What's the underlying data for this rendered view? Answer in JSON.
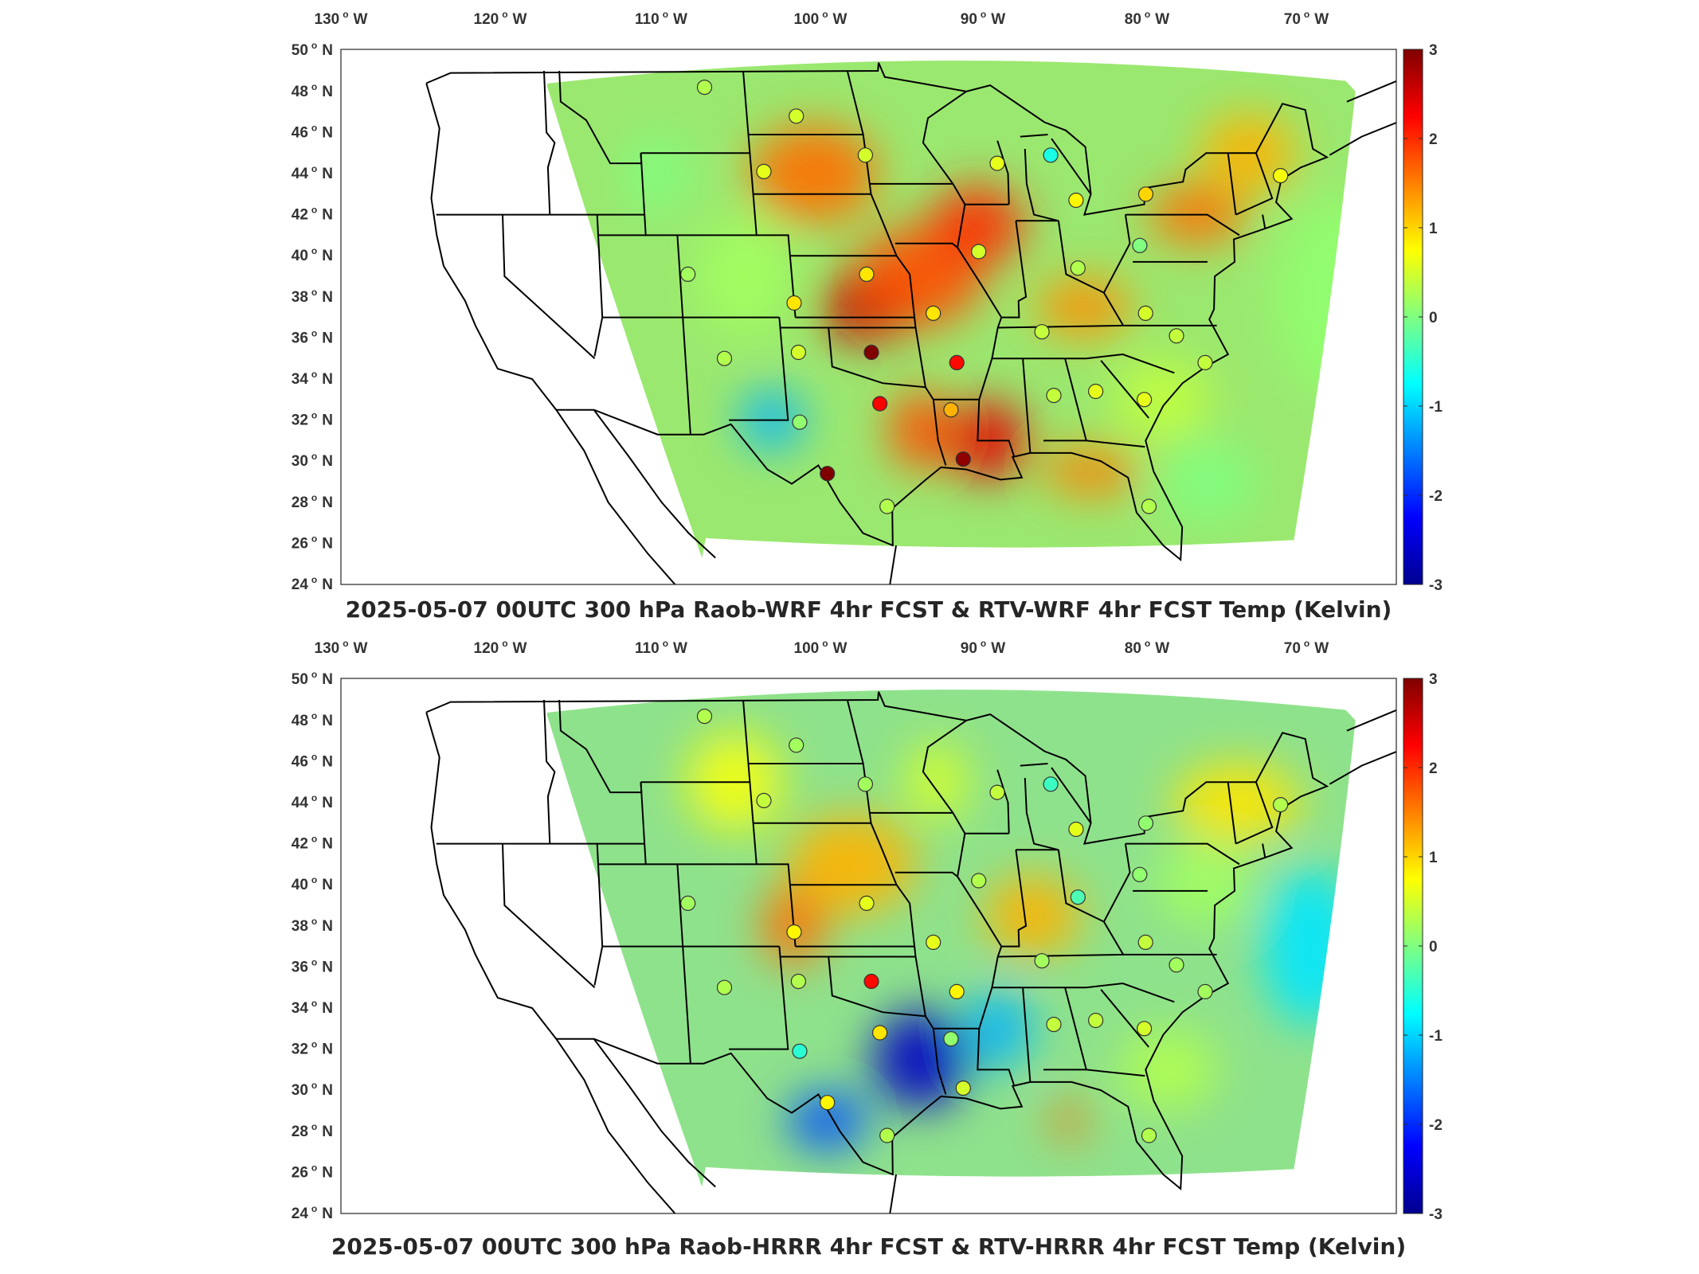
{
  "panels": [
    {
      "id": "top",
      "title": "2025-05-07 00UTC 300 hPa Raob-WRF 4hr FCST & RTV-WRF 4hr FCST Temp (Kelvin)",
      "lon_labels": [
        "130",
        "120",
        "110",
        "100",
        "90",
        "80",
        "70"
      ],
      "lon_suffix": "W",
      "lat_labels": [
        "50",
        "48",
        "46",
        "44",
        "42",
        "40",
        "38",
        "36",
        "34",
        "32",
        "30",
        "28",
        "26",
        "24"
      ],
      "lat_suffix": "N",
      "colorbar_ticks": [
        "3",
        "2",
        "1",
        "0",
        "-1",
        "-2",
        "-3"
      ],
      "stations": [
        {
          "lon": -106.6,
          "lat": 48.2,
          "value": 0.3
        },
        {
          "lon": -100.8,
          "lat": 46.8,
          "value": 0.5
        },
        {
          "lon": -103.2,
          "lat": 44.1,
          "value": 0.6
        },
        {
          "lon": -96.6,
          "lat": 44.9,
          "value": 0.5
        },
        {
          "lon": -88.2,
          "lat": 44.5,
          "value": 0.6
        },
        {
          "lon": -84.7,
          "lat": 44.9,
          "value": -0.6
        },
        {
          "lon": -83.5,
          "lat": 42.7,
          "value": 0.8
        },
        {
          "lon": -79.0,
          "lat": 43.0,
          "value": 1.0
        },
        {
          "lon": -70.2,
          "lat": 43.9,
          "value": 0.7
        },
        {
          "lon": -90.1,
          "lat": 40.2,
          "value": 0.5
        },
        {
          "lon": -79.9,
          "lat": 40.5,
          "value": 0.0
        },
        {
          "lon": -84.0,
          "lat": 39.4,
          "value": 0.3
        },
        {
          "lon": -108.5,
          "lat": 39.1,
          "value": 0.2
        },
        {
          "lon": -97.3,
          "lat": 39.1,
          "value": 0.9
        },
        {
          "lon": -102.0,
          "lat": 37.7,
          "value": 0.9
        },
        {
          "lon": -93.4,
          "lat": 37.2,
          "value": 0.9
        },
        {
          "lon": -86.8,
          "lat": 36.3,
          "value": 0.4
        },
        {
          "lon": -80.2,
          "lat": 37.2,
          "value": 0.5
        },
        {
          "lon": -78.5,
          "lat": 36.1,
          "value": 0.4
        },
        {
          "lon": -106.6,
          "lat": 35.0,
          "value": 0.3
        },
        {
          "lon": -102.0,
          "lat": 35.3,
          "value": 0.5
        },
        {
          "lon": -97.5,
          "lat": 35.3,
          "value": 3.0
        },
        {
          "lon": -92.3,
          "lat": 34.8,
          "value": 2.2
        },
        {
          "lon": -77.0,
          "lat": 34.8,
          "value": 0.4
        },
        {
          "lon": -97.3,
          "lat": 32.8,
          "value": 2.3
        },
        {
          "lon": -93.0,
          "lat": 32.5,
          "value": 1.2
        },
        {
          "lon": -86.6,
          "lat": 33.2,
          "value": 0.4
        },
        {
          "lon": -84.0,
          "lat": 33.4,
          "value": 0.6
        },
        {
          "lon": -81.1,
          "lat": 33.0,
          "value": 0.6
        },
        {
          "lon": -102.3,
          "lat": 31.9,
          "value": 0.1
        },
        {
          "lon": -100.9,
          "lat": 29.4,
          "value": 3.0
        },
        {
          "lon": -92.6,
          "lat": 30.1,
          "value": 2.9
        },
        {
          "lon": -97.5,
          "lat": 27.8,
          "value": 0.3
        },
        {
          "lon": -81.8,
          "lat": 27.8,
          "value": 0.3
        }
      ]
    },
    {
      "id": "bottom",
      "title": "2025-05-07 00UTC 300 hPa Raob-HRRR 4hr FCST & RTV-HRRR 4hr FCST Temp (Kelvin)",
      "lon_labels": [
        "130",
        "120",
        "110",
        "100",
        "90",
        "80",
        "70"
      ],
      "lon_suffix": "W",
      "lat_labels": [
        "50",
        "48",
        "46",
        "44",
        "42",
        "40",
        "38",
        "36",
        "34",
        "32",
        "30",
        "28",
        "26",
        "24"
      ],
      "lat_suffix": "N",
      "colorbar_ticks": [
        "3",
        "2",
        "1",
        "0",
        "-1",
        "-2",
        "-3"
      ],
      "stations": [
        {
          "lon": -106.6,
          "lat": 48.2,
          "value": 0.3
        },
        {
          "lon": -100.8,
          "lat": 46.8,
          "value": 0.2
        },
        {
          "lon": -103.2,
          "lat": 44.1,
          "value": 0.4
        },
        {
          "lon": -96.6,
          "lat": 44.9,
          "value": 0.2
        },
        {
          "lon": -88.2,
          "lat": 44.5,
          "value": 0.4
        },
        {
          "lon": -84.7,
          "lat": 44.9,
          "value": -0.4
        },
        {
          "lon": -83.5,
          "lat": 42.7,
          "value": 0.6
        },
        {
          "lon": -79.0,
          "lat": 43.0,
          "value": 0.1
        },
        {
          "lon": -70.2,
          "lat": 43.9,
          "value": 0.3
        },
        {
          "lon": -90.1,
          "lat": 40.2,
          "value": 0.3
        },
        {
          "lon": -79.9,
          "lat": 40.5,
          "value": 0.1
        },
        {
          "lon": -84.0,
          "lat": 39.4,
          "value": -0.3
        },
        {
          "lon": -108.5,
          "lat": 39.1,
          "value": 0.2
        },
        {
          "lon": -97.3,
          "lat": 39.1,
          "value": 0.6
        },
        {
          "lon": -102.0,
          "lat": 37.7,
          "value": 0.8
        },
        {
          "lon": -93.4,
          "lat": 37.2,
          "value": 0.6
        },
        {
          "lon": -86.8,
          "lat": 36.3,
          "value": 0.2
        },
        {
          "lon": -80.2,
          "lat": 37.2,
          "value": 0.4
        },
        {
          "lon": -78.5,
          "lat": 36.1,
          "value": 0.2
        },
        {
          "lon": -106.6,
          "lat": 35.0,
          "value": 0.3
        },
        {
          "lon": -102.0,
          "lat": 35.3,
          "value": 0.3
        },
        {
          "lon": -97.5,
          "lat": 35.3,
          "value": 2.2
        },
        {
          "lon": -92.3,
          "lat": 34.8,
          "value": 0.8
        },
        {
          "lon": -77.0,
          "lat": 34.8,
          "value": 0.2
        },
        {
          "lon": -97.3,
          "lat": 32.8,
          "value": 0.9
        },
        {
          "lon": -93.0,
          "lat": 32.5,
          "value": 0.1
        },
        {
          "lon": -86.6,
          "lat": 33.2,
          "value": 0.4
        },
        {
          "lon": -84.0,
          "lat": 33.4,
          "value": 0.4
        },
        {
          "lon": -81.1,
          "lat": 33.0,
          "value": 0.5
        },
        {
          "lon": -102.3,
          "lat": 31.9,
          "value": -0.5
        },
        {
          "lon": -100.9,
          "lat": 29.4,
          "value": 0.8
        },
        {
          "lon": -92.6,
          "lat": 30.1,
          "value": 0.5
        },
        {
          "lon": -97.5,
          "lat": 27.8,
          "value": 0.3
        },
        {
          "lon": -81.8,
          "lat": 27.8,
          "value": 0.3
        }
      ]
    }
  ],
  "colors": {
    "jet_scale": [
      "#00008f",
      "#0000ff",
      "#0080ff",
      "#00ffff",
      "#80ff80",
      "#ffff00",
      "#ff8000",
      "#ff0000",
      "#800000"
    ],
    "field_background_top": "#9be870",
    "field_background_bottom": "#8fe28c",
    "outline": "#000000"
  }
}
